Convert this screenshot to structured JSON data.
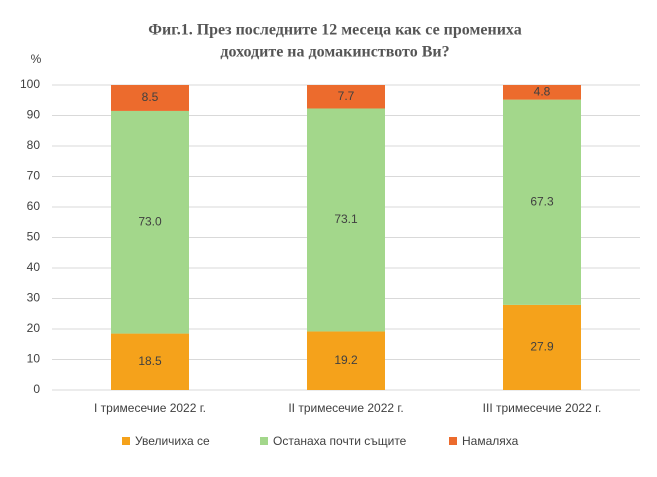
{
  "chart_data": {
    "type": "stacked-bar",
    "title": [
      "Фиг.1. През последните 12 месеца как се промениха",
      "доходите на домакинството Ви?"
    ],
    "y_label": "%",
    "categories": [
      "I тримесечие 2022 г.",
      "II тримесечие 2022 г.",
      "III тримесечие 2022 г."
    ],
    "series": [
      {
        "name": "Увеличиха се",
        "color": "#f5a21b",
        "values": [
          18.5,
          19.2,
          27.9
        ],
        "value_labels": [
          "18.5",
          "19.2",
          "27.9"
        ]
      },
      {
        "name": "Останаха почти същите",
        "color": "#a3d78b",
        "values": [
          73,
          73.1,
          67.3
        ],
        "value_labels": [
          "73.0",
          "73.1",
          "67.3"
        ]
      },
      {
        "name": "Намаляха",
        "color": "#ec6b2d",
        "values": [
          8.5,
          7.7,
          4.8
        ],
        "value_labels": [
          "8.5",
          "7.7",
          "4.8"
        ]
      }
    ],
    "ylim": [
      0,
      100
    ],
    "yticks": [
      0,
      10,
      20,
      30,
      40,
      50,
      60,
      70,
      80,
      90,
      100
    ],
    "grid": true
  }
}
